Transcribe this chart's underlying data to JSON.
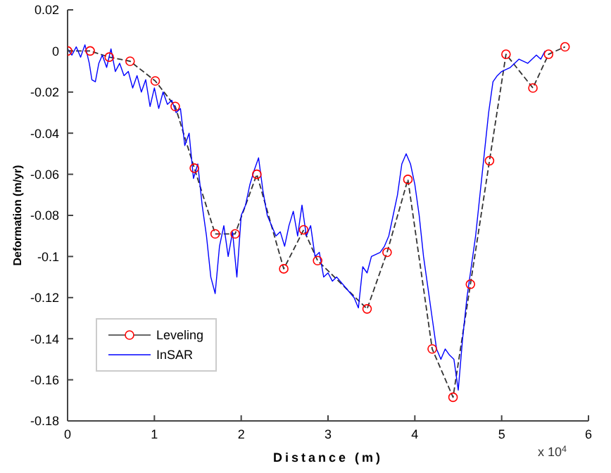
{
  "chart_data": {
    "type": "line",
    "xlabel": "Distance (m)",
    "ylabel": "Deformation (m/yr)",
    "xlim": [
      0,
      6
    ],
    "xticks": [
      0,
      1,
      2,
      3,
      4,
      5,
      6
    ],
    "ylim": [
      -0.18,
      0.02
    ],
    "yticks": [
      -0.18,
      -0.16,
      -0.14,
      -0.12,
      -0.1,
      -0.08,
      -0.06,
      -0.04,
      -0.02,
      0,
      0.02
    ],
    "grid": false,
    "legend": "bottom left",
    "annotations": [
      "x 10$^{4}$"
    ],
    "series": [
      {
        "name": "Leveling",
        "color": "#333333",
        "marker": "circle",
        "line_style": "dashed",
        "x": [
          0,
          0.26,
          0.48,
          0.72,
          1.01,
          1.24,
          1.46,
          1.7,
          1.93,
          2.18,
          2.49,
          2.72,
          2.88,
          3.45,
          3.68,
          3.92,
          4.2,
          4.44,
          4.64,
          4.86,
          5.05,
          5.36,
          5.54,
          5.73
        ],
        "values": [
          0,
          0,
          -0.003,
          -0.005,
          -0.0146,
          -0.027,
          -0.057,
          -0.089,
          -0.089,
          -0.06,
          -0.106,
          -0.087,
          -0.102,
          -0.1255,
          -0.098,
          -0.0625,
          -0.145,
          -0.1685,
          -0.1135,
          -0.0534,
          -0.0016,
          -0.018,
          -0.0016,
          0.002
        ]
      },
      {
        "name": "InSAR",
        "color": "#0000ff",
        "marker": "none",
        "line_style": "solid",
        "x": [
          0,
          0.05,
          0.1,
          0.15,
          0.2,
          0.25,
          0.28,
          0.32,
          0.36,
          0.4,
          0.45,
          0.5,
          0.55,
          0.6,
          0.65,
          0.7,
          0.75,
          0.8,
          0.85,
          0.9,
          0.95,
          1.0,
          1.05,
          1.1,
          1.15,
          1.2,
          1.25,
          1.3,
          1.35,
          1.4,
          1.45,
          1.5,
          1.55,
          1.6,
          1.65,
          1.7,
          1.75,
          1.8,
          1.85,
          1.9,
          1.95,
          2.0,
          2.05,
          2.1,
          2.15,
          2.2,
          2.25,
          2.3,
          2.35,
          2.4,
          2.45,
          2.5,
          2.55,
          2.6,
          2.65,
          2.7,
          2.75,
          2.8,
          2.85,
          2.9,
          2.95,
          3.0,
          3.05,
          3.1,
          3.2,
          3.3,
          3.35,
          3.4,
          3.45,
          3.5,
          3.6,
          3.65,
          3.7,
          3.75,
          3.8,
          3.85,
          3.9,
          3.95,
          4.0,
          4.05,
          4.1,
          4.15,
          4.2,
          4.25,
          4.3,
          4.35,
          4.4,
          4.45,
          4.5,
          4.55,
          4.6,
          4.65,
          4.7,
          4.75,
          4.8,
          4.85,
          4.9,
          4.95,
          5.0,
          5.1,
          5.2,
          5.3,
          5.4,
          5.45,
          5.5
        ],
        "values": [
          0.001,
          -0.002,
          0.002,
          -0.003,
          0.003,
          -0.006,
          -0.014,
          -0.015,
          -0.006,
          -0.002,
          -0.008,
          0.001,
          -0.01,
          -0.006,
          -0.012,
          -0.01,
          -0.018,
          -0.012,
          -0.02,
          -0.014,
          -0.027,
          -0.018,
          -0.028,
          -0.02,
          -0.026,
          -0.024,
          -0.03,
          -0.028,
          -0.046,
          -0.04,
          -0.062,
          -0.055,
          -0.075,
          -0.09,
          -0.11,
          -0.118,
          -0.095,
          -0.085,
          -0.1,
          -0.088,
          -0.11,
          -0.08,
          -0.075,
          -0.065,
          -0.058,
          -0.052,
          -0.068,
          -0.08,
          -0.085,
          -0.09,
          -0.088,
          -0.095,
          -0.085,
          -0.078,
          -0.09,
          -0.075,
          -0.09,
          -0.085,
          -0.1,
          -0.098,
          -0.11,
          -0.108,
          -0.112,
          -0.11,
          -0.115,
          -0.12,
          -0.125,
          -0.105,
          -0.108,
          -0.1,
          -0.098,
          -0.095,
          -0.09,
          -0.08,
          -0.07,
          -0.055,
          -0.05,
          -0.055,
          -0.065,
          -0.08,
          -0.1,
          -0.115,
          -0.13,
          -0.145,
          -0.15,
          -0.145,
          -0.148,
          -0.15,
          -0.165,
          -0.14,
          -0.12,
          -0.105,
          -0.09,
          -0.07,
          -0.05,
          -0.03,
          -0.015,
          -0.012,
          -0.01,
          -0.008,
          -0.004,
          -0.006,
          -0.002,
          -0.004,
          0
        ]
      }
    ]
  }
}
